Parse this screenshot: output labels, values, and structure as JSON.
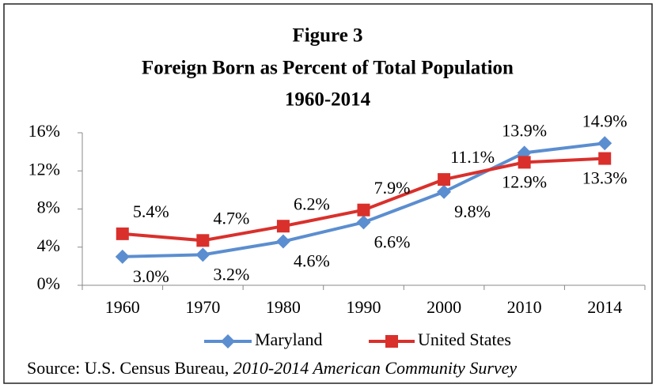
{
  "chart_data": {
    "type": "line",
    "title": [
      "Figure 3",
      "Foreign Born as Percent of Total Population",
      "1960-2014"
    ],
    "source": {
      "text": "Source:  U.S. Census Bureau, ",
      "italic": "2010-2014 American Community Survey"
    },
    "categories": [
      "1960",
      "1970",
      "1980",
      "1990",
      "2000",
      "2010",
      "2014"
    ],
    "series": [
      {
        "name": "Maryland",
        "color": "#5b8ed0",
        "marker": "diamond",
        "values": [
          3.0,
          3.2,
          4.6,
          6.6,
          9.8,
          13.9,
          14.9
        ],
        "value_labels": [
          "3.0%",
          "3.2%",
          "4.6%",
          "6.6%",
          "9.8%",
          "13.9%",
          "14.9%"
        ]
      },
      {
        "name": "United States",
        "color": "#d9302c",
        "marker": "square",
        "values": [
          5.4,
          4.7,
          6.2,
          7.9,
          11.1,
          12.9,
          13.3
        ],
        "value_labels": [
          "5.4%",
          "4.7%",
          "6.2%",
          "7.9%",
          "11.1%",
          "12.9%",
          "13.3%"
        ]
      }
    ],
    "ylim": [
      0,
      16
    ],
    "yticks": [
      {
        "value": 0,
        "label": "0%"
      },
      {
        "value": 4,
        "label": "4%"
      },
      {
        "value": 8,
        "label": "8%"
      },
      {
        "value": 12,
        "label": "12%"
      },
      {
        "value": 16,
        "label": "16%"
      }
    ],
    "legend": "bottom"
  }
}
